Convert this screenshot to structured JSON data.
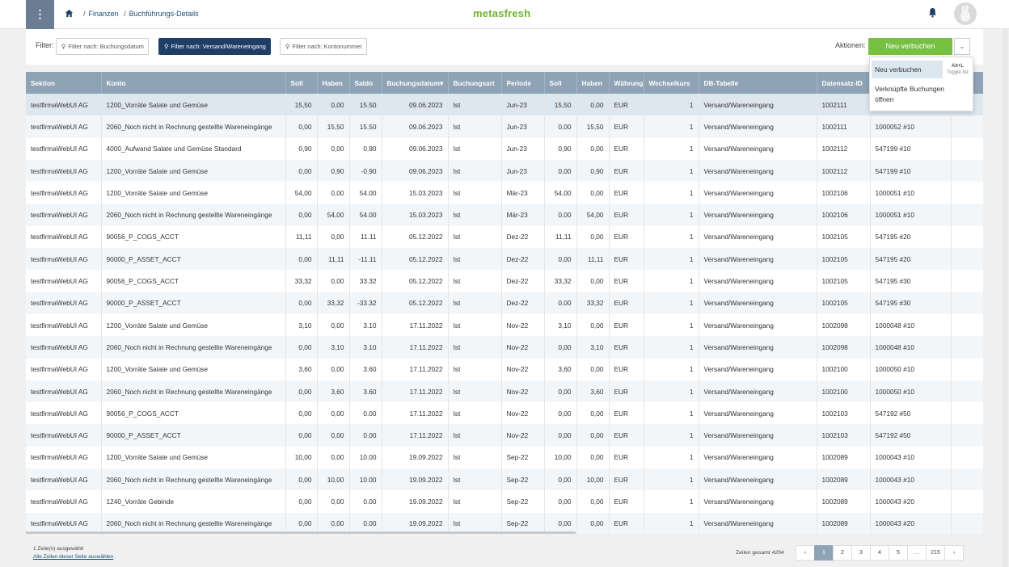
{
  "header": {
    "menu_icon": "⋮",
    "breadcrumb": [
      "Finanzen",
      "Buchführungs-Details"
    ],
    "logo": "metasfresh"
  },
  "filters": {
    "label": "Filter:",
    "buttons": [
      "Filter nach: Buchungsdatum",
      "Filter nach: Versand/Wareneingang",
      "Filter nach: Kontonummer"
    ],
    "active_index": 1
  },
  "actions": {
    "label": "Aktionen:",
    "primary": "Neu verbuchen",
    "menu": {
      "item1": "Neu verbuchen",
      "item1_shortcut": "Alt+L",
      "item1_hint": "Toggle list",
      "item2": "Verknüpfte Buchungen öffnen"
    }
  },
  "table": {
    "columns": [
      "Sektion",
      "Konto",
      "Soll",
      "Haben",
      "Saldo",
      "Buchungsdatum",
      "Buchungsart",
      "Periode",
      "Soll",
      "Haben",
      "Währung",
      "Wechselkurs",
      "DB-Tabelle",
      "Datensatz-ID",
      "",
      ""
    ],
    "sort_marker": "▾",
    "rows": [
      [
        "testfirmaWebUI AG",
        "1200_Vorräte Salate und Gemüse",
        "15,50",
        "0,00",
        "15.50",
        "09.06.2023",
        "Ist",
        "Jun-23",
        "15,50",
        "0,00",
        "EUR",
        "1",
        "Versand/Wareneingang",
        "1002111",
        "",
        ""
      ],
      [
        "testfirmaWebUI AG",
        "2060_Noch nicht in Rechnung gestellte Wareneingänge",
        "0,00",
        "15,50",
        "15.50",
        "09.06.2023",
        "Ist",
        "Jun-23",
        "0,00",
        "15,50",
        "EUR",
        "1",
        "Versand/Wareneingang",
        "1002111",
        "1000052 #10",
        ""
      ],
      [
        "testfirmaWebUI AG",
        "4000_Aufwand Salate und Gemüse Standard",
        "0,90",
        "0,00",
        "0.90",
        "09.06.2023",
        "Ist",
        "Jun-23",
        "0,90",
        "0,00",
        "EUR",
        "1",
        "Versand/Wareneingang",
        "1002112",
        "547199 #10",
        ""
      ],
      [
        "testfirmaWebUI AG",
        "1200_Vorräte Salate und Gemüse",
        "0,00",
        "0,90",
        "-0.90",
        "09.06.2023",
        "Ist",
        "Jun-23",
        "0,00",
        "0,90",
        "EUR",
        "1",
        "Versand/Wareneingang",
        "1002112",
        "547199 #10",
        ""
      ],
      [
        "testfirmaWebUI AG",
        "1200_Vorräte Salate und Gemüse",
        "54,00",
        "0,00",
        "54.00",
        "15.03.2023",
        "Ist",
        "Mär-23",
        "54,00",
        "0,00",
        "EUR",
        "1",
        "Versand/Wareneingang",
        "1002106",
        "1000051 #10",
        ""
      ],
      [
        "testfirmaWebUI AG",
        "2060_Noch nicht in Rechnung gestellte Wareneingänge",
        "0,00",
        "54,00",
        "54.00",
        "15.03.2023",
        "Ist",
        "Mär-23",
        "0,00",
        "54,00",
        "EUR",
        "1",
        "Versand/Wareneingang",
        "1002106",
        "1000051 #10",
        ""
      ],
      [
        "testfirmaWebUI AG",
        "90056_P_COGS_ACCT",
        "11,11",
        "0,00",
        "11.11",
        "05.12.2022",
        "Ist",
        "Dez-22",
        "11,11",
        "0,00",
        "EUR",
        "1",
        "Versand/Wareneingang",
        "1002105",
        "547195 #20",
        ""
      ],
      [
        "testfirmaWebUI AG",
        "90000_P_ASSET_ACCT",
        "0,00",
        "11,11",
        "-11.11",
        "05.12.2022",
        "Ist",
        "Dez-22",
        "0,00",
        "11,11",
        "EUR",
        "1",
        "Versand/Wareneingang",
        "1002105",
        "547195 #20",
        ""
      ],
      [
        "testfirmaWebUI AG",
        "90056_P_COGS_ACCT",
        "33,32",
        "0,00",
        "33.32",
        "05.12.2022",
        "Ist",
        "Dez-22",
        "33,32",
        "0,00",
        "EUR",
        "1",
        "Versand/Wareneingang",
        "1002105",
        "547195 #30",
        ""
      ],
      [
        "testfirmaWebUI AG",
        "90000_P_ASSET_ACCT",
        "0,00",
        "33,32",
        "-33.32",
        "05.12.2022",
        "Ist",
        "Dez-22",
        "0,00",
        "33,32",
        "EUR",
        "1",
        "Versand/Wareneingang",
        "1002105",
        "547195 #30",
        ""
      ],
      [
        "testfirmaWebUI AG",
        "1200_Vorräte Salate und Gemüse",
        "3,10",
        "0,00",
        "3.10",
        "17.11.2022",
        "Ist",
        "Nov-22",
        "3,10",
        "0,00",
        "EUR",
        "1",
        "Versand/Wareneingang",
        "1002098",
        "1000048 #10",
        ""
      ],
      [
        "testfirmaWebUI AG",
        "2060_Noch nicht in Rechnung gestellte Wareneingänge",
        "0,00",
        "3,10",
        "3.10",
        "17.11.2022",
        "Ist",
        "Nov-22",
        "0,00",
        "3,10",
        "EUR",
        "1",
        "Versand/Wareneingang",
        "1002098",
        "1000048 #10",
        ""
      ],
      [
        "testfirmaWebUI AG",
        "1200_Vorräte Salate und Gemüse",
        "3,60",
        "0,00",
        "3.60",
        "17.11.2022",
        "Ist",
        "Nov-22",
        "3,60",
        "0,00",
        "EUR",
        "1",
        "Versand/Wareneingang",
        "1002100",
        "1000050 #10",
        ""
      ],
      [
        "testfirmaWebUI AG",
        "2060_Noch nicht in Rechnung gestellte Wareneingänge",
        "0,00",
        "3,60",
        "3.60",
        "17.11.2022",
        "Ist",
        "Nov-22",
        "0,00",
        "3,60",
        "EUR",
        "1",
        "Versand/Wareneingang",
        "1002100",
        "1000050 #10",
        ""
      ],
      [
        "testfirmaWebUI AG",
        "90056_P_COGS_ACCT",
        "0,00",
        "0,00",
        "0.00",
        "17.11.2022",
        "Ist",
        "Nov-22",
        "0,00",
        "0,00",
        "EUR",
        "1",
        "Versand/Wareneingang",
        "1002103",
        "547192 #50",
        ""
      ],
      [
        "testfirmaWebUI AG",
        "90000_P_ASSET_ACCT",
        "0,00",
        "0,00",
        "0.00",
        "17.11.2022",
        "Ist",
        "Nov-22",
        "0,00",
        "0,00",
        "EUR",
        "1",
        "Versand/Wareneingang",
        "1002103",
        "547192 #50",
        ""
      ],
      [
        "testfirmaWebUI AG",
        "1200_Vorräte Salate und Gemüse",
        "10,00",
        "0,00",
        "10.00",
        "19.09.2022",
        "Ist",
        "Sep-22",
        "10,00",
        "0,00",
        "EUR",
        "1",
        "Versand/Wareneingang",
        "1002089",
        "1000043 #10",
        ""
      ],
      [
        "testfirmaWebUI AG",
        "2060_Noch nicht in Rechnung gestellte Wareneingänge",
        "0,00",
        "10,00",
        "10.00",
        "19.09.2022",
        "Ist",
        "Sep-22",
        "0,00",
        "10,00",
        "EUR",
        "1",
        "Versand/Wareneingang",
        "1002089",
        "1000043 #10",
        ""
      ],
      [
        "testfirmaWebUI AG",
        "1240_Vorräte Gebinde",
        "0,00",
        "0,00",
        "0.00",
        "19.09.2022",
        "Ist",
        "Sep-22",
        "0,00",
        "0,00",
        "EUR",
        "1",
        "Versand/Wareneingang",
        "1002089",
        "1000043 #20",
        ""
      ],
      [
        "testfirmaWebUI AG",
        "2060_Noch nicht in Rechnung gestellte Wareneingänge",
        "0,00",
        "0,00",
        "0.00",
        "19.09.2022",
        "Ist",
        "Sep-22",
        "0,00",
        "0,00",
        "EUR",
        "1",
        "Versand/Wareneingang",
        "1002089",
        "1000043 #20",
        ""
      ]
    ]
  },
  "footer": {
    "selected_text": "1 Zeile(n) ausgewählt",
    "select_all_link": "Alle Zeilen dieser Seite auswählen",
    "total_text": "Zeilen gesamt 4294",
    "pages": [
      "‹",
      "1",
      "2",
      "3",
      "4",
      "5",
      "…",
      "215",
      "›"
    ],
    "active_page": "1"
  },
  "colors": {
    "header_bg": "#8fa3b6",
    "primary": "#78c041",
    "logo": "#6fb234",
    "active_filter": "#1f3e66"
  }
}
